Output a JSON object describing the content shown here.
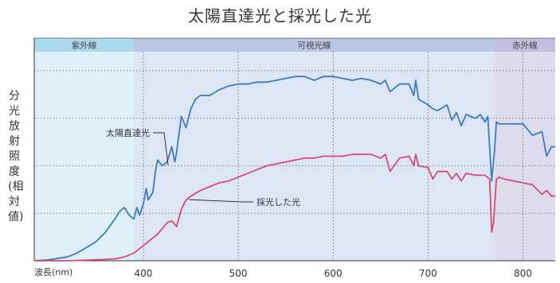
{
  "chart_data": {
    "type": "line",
    "title": "太陽直達光と採光した光",
    "ylabel": "分光放射照度(相対値)",
    "xlabel": "波長(nm)",
    "xlim": [
      285,
      834
    ],
    "ylim": [
      0,
      1
    ],
    "x_ticks": [
      400,
      500,
      600,
      700,
      800
    ],
    "grid": true,
    "regions": [
      {
        "label": "紫外線",
        "from": 285,
        "to": 390,
        "color": "#dff0f8",
        "band_color": "#a9d8ef"
      },
      {
        "label": "可視光線",
        "from": 390,
        "to": 770,
        "color": "#dde6f4",
        "band_color": "#b9c6e4"
      },
      {
        "label": "赤外線",
        "from": 770,
        "to": 834,
        "color": "#dcdcec",
        "band_color": "#c3bedd"
      }
    ],
    "series": [
      {
        "name": "太陽直達光",
        "color": "#3b7bbf",
        "x": [
          285,
          300,
          320,
          330,
          340,
          350,
          360,
          370,
          375,
          380,
          385,
          390,
          393,
          396,
          400,
          403,
          405,
          410,
          413,
          415,
          420,
          425,
          430,
          433,
          435,
          440,
          445,
          450,
          455,
          460,
          470,
          480,
          490,
          500,
          510,
          520,
          530,
          540,
          550,
          560,
          570,
          580,
          590,
          600,
          610,
          620,
          630,
          640,
          650,
          655,
          660,
          670,
          680,
          685,
          687,
          690,
          700,
          705,
          710,
          720,
          725,
          730,
          735,
          740,
          750,
          755,
          760,
          763,
          767,
          770,
          772,
          775,
          780,
          790,
          800,
          810,
          820,
          825,
          830,
          834
        ],
        "y": [
          0.0,
          0.005,
          0.02,
          0.04,
          0.07,
          0.1,
          0.15,
          0.22,
          0.26,
          0.28,
          0.24,
          0.22,
          0.28,
          0.24,
          0.3,
          0.38,
          0.32,
          0.36,
          0.48,
          0.53,
          0.5,
          0.52,
          0.6,
          0.52,
          0.57,
          0.76,
          0.7,
          0.8,
          0.85,
          0.87,
          0.87,
          0.9,
          0.92,
          0.93,
          0.93,
          0.94,
          0.94,
          0.95,
          0.96,
          0.97,
          0.97,
          0.95,
          0.97,
          0.97,
          0.96,
          0.95,
          0.96,
          0.95,
          0.93,
          0.95,
          0.89,
          0.93,
          0.93,
          0.87,
          0.95,
          0.85,
          0.82,
          0.8,
          0.79,
          0.82,
          0.74,
          0.78,
          0.71,
          0.77,
          0.75,
          0.77,
          0.73,
          0.76,
          0.42,
          0.58,
          0.73,
          0.72,
          0.72,
          0.72,
          0.72,
          0.66,
          0.68,
          0.55,
          0.6,
          0.6
        ]
      },
      {
        "name": "採光した光",
        "color": "#d94876",
        "x": [
          285,
          320,
          350,
          370,
          380,
          385,
          390,
          395,
          400,
          405,
          410,
          415,
          420,
          425,
          430,
          435,
          440,
          445,
          450,
          460,
          470,
          480,
          490,
          500,
          510,
          520,
          530,
          540,
          550,
          560,
          570,
          580,
          590,
          600,
          610,
          620,
          630,
          640,
          650,
          655,
          660,
          670,
          680,
          685,
          687,
          690,
          700,
          705,
          710,
          720,
          725,
          730,
          735,
          740,
          750,
          760,
          765,
          767,
          769,
          772,
          775,
          780,
          790,
          800,
          810,
          820,
          825,
          830,
          834
        ],
        "y": [
          0.0,
          0.0,
          0.005,
          0.01,
          0.02,
          0.03,
          0.04,
          0.06,
          0.08,
          0.1,
          0.12,
          0.14,
          0.17,
          0.2,
          0.21,
          0.18,
          0.27,
          0.32,
          0.34,
          0.37,
          0.39,
          0.41,
          0.42,
          0.44,
          0.46,
          0.48,
          0.5,
          0.51,
          0.52,
          0.53,
          0.54,
          0.54,
          0.55,
          0.55,
          0.55,
          0.56,
          0.56,
          0.56,
          0.54,
          0.56,
          0.47,
          0.54,
          0.55,
          0.5,
          0.56,
          0.5,
          0.49,
          0.43,
          0.47,
          0.47,
          0.43,
          0.46,
          0.42,
          0.46,
          0.45,
          0.45,
          0.43,
          0.15,
          0.2,
          0.43,
          0.44,
          0.43,
          0.42,
          0.41,
          0.4,
          0.35,
          0.37,
          0.34,
          0.34
        ]
      }
    ],
    "annotations": [
      {
        "text": "太陽直達光",
        "series": 0
      },
      {
        "text": "採光した光",
        "series": 1
      }
    ]
  }
}
